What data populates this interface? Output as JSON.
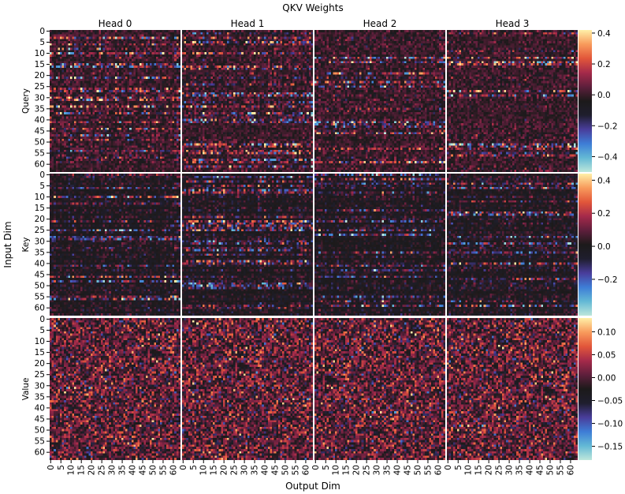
{
  "chart_data": {
    "type": "heatmap",
    "title": "QKV Weights",
    "xlabel": "Output Dim",
    "ylabel": "Input Dim",
    "columns": [
      "Head 0",
      "Head 1",
      "Head 2",
      "Head 3"
    ],
    "rows": [
      {
        "label": "Query",
        "vmin": -0.5,
        "vmax": 0.42,
        "colorbar_ticks": [
          "0.4",
          "0.2",
          "0.0",
          "−0.2",
          "−0.4"
        ],
        "colorbar_tick_values": [
          0.4,
          0.2,
          0.0,
          -0.2,
          -0.4
        ]
      },
      {
        "label": "Key",
        "vmin": -0.42,
        "vmax": 0.44,
        "colorbar_ticks": [
          "0.4",
          "0.2",
          "0.0",
          "−0.2"
        ],
        "colorbar_tick_values": [
          0.4,
          0.2,
          0.0,
          -0.2
        ]
      },
      {
        "label": "Value",
        "vmin": -0.18,
        "vmax": 0.13,
        "colorbar_ticks": [
          "0.10",
          "0.05",
          "0.00",
          "−0.05",
          "−0.10",
          "−0.15"
        ],
        "colorbar_tick_values": [
          0.1,
          0.05,
          0.0,
          -0.05,
          -0.1,
          -0.15
        ]
      }
    ],
    "matrix_size": 64,
    "y_tick_labels": [
      "0",
      "5",
      "10",
      "15",
      "20",
      "25",
      "30",
      "35",
      "40",
      "45",
      "50",
      "55",
      "60"
    ],
    "x_tick_labels": [
      "0",
      "5",
      "10",
      "15",
      "20",
      "25",
      "30",
      "35",
      "40",
      "45",
      "50",
      "55",
      "60"
    ],
    "colormap": "icefire",
    "colormap_stops": [
      "#bde7db",
      "#63b9d5",
      "#3e7dd6",
      "#493d9b",
      "#1f1e2e",
      "#1c1a1a",
      "#5e1f3c",
      "#a52a4a",
      "#e2563a",
      "#f89b5c",
      "#fff0a8"
    ],
    "grid": false
  }
}
